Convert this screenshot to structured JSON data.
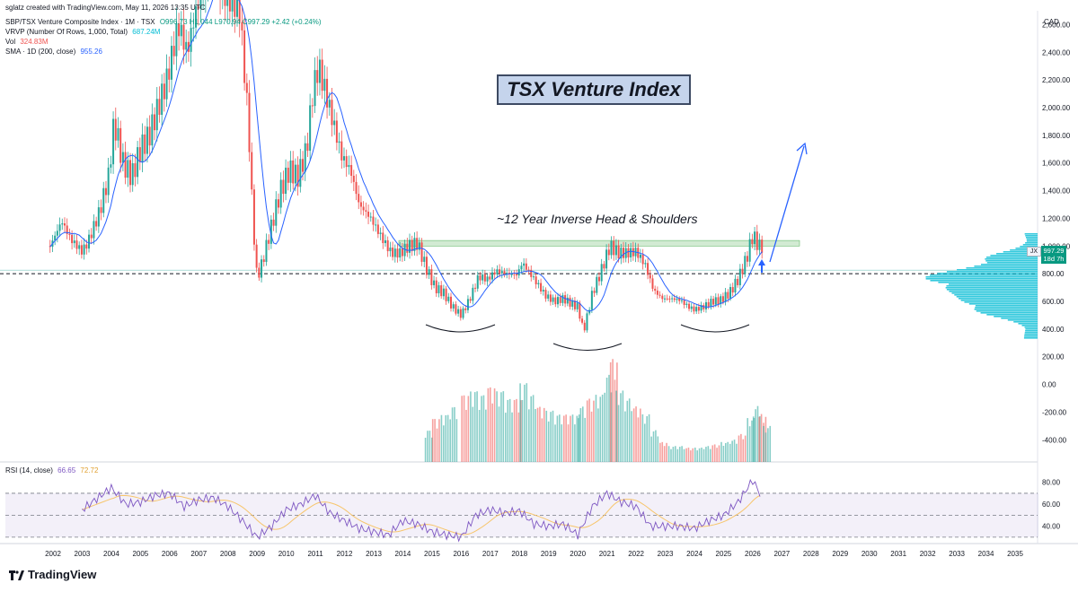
{
  "header": {
    "attribution": "sglatz created with TradingView.com, May 11, 2026 13:35 UTC",
    "symbol_line": "SBP/TSX Venture Composite Index · 1M · TSX",
    "ohlc": "O996.73 H1,044 L970.94 C997.29 +2.42 (+0.24%)",
    "vrvp_label": "VRVP (Number Of Rows, 1,000, Total)",
    "vrvp_value": "687.24M",
    "vol_label": "Vol",
    "vol_value": "324.83M",
    "sma_label": "SMA · 1D (200, close)",
    "sma_value": "955.26",
    "rsi_label": "RSI (14, close)",
    "rsi_value": "66.65",
    "rsi_ma_value": "72.72"
  },
  "annotations": {
    "title": "TSX Venture Index",
    "pattern": "~12 Year Inverse Head & Shoulders"
  },
  "price_tag": {
    "symbol": "JX",
    "price": "997.29",
    "countdown": "18d 7h"
  },
  "currency": "CAD",
  "brand": "TradingView",
  "colors": {
    "up": "#26a69a",
    "down": "#ef5350",
    "sma": "#2962ff",
    "rsi": "#7e57c2",
    "rsi_ma": "#f7c56b",
    "vrvp": "#00bcd4"
  },
  "chart_data": {
    "type": "candlestick",
    "x_ticks": [
      "2002",
      "2003",
      "2004",
      "2005",
      "2006",
      "2007",
      "2008",
      "2009",
      "2010",
      "2011",
      "2012",
      "2013",
      "2014",
      "2015",
      "2016",
      "2017",
      "2018",
      "2019",
      "2020",
      "2021",
      "2022",
      "2023",
      "2024",
      "2025",
      "2026",
      "2027",
      "2028",
      "2029",
      "2030",
      "2031",
      "2032",
      "2033",
      "2034",
      "2035"
    ],
    "price_ticks": [
      "-400.00",
      "-200.00",
      "0.00",
      "200.00",
      "400.00",
      "600.00",
      "800.00",
      "1,000.00",
      "1,200.00",
      "1,400.00",
      "1,600.00",
      "1,800.00",
      "2,000.00",
      "2,200.00",
      "2,400.00",
      "2,600.00"
    ],
    "rsi_ticks": [
      "40.00",
      "60.00",
      "80.00"
    ],
    "price_ylim": [
      -560,
      2700
    ],
    "rsi_ylim": [
      25,
      92
    ],
    "support_level": 800,
    "resistance_zone": [
      1000,
      1040
    ],
    "sma_value": 955.26,
    "close_series": [
      {
        "t": 2001.9,
        "v": 1000
      },
      {
        "t": 2002.3,
        "v": 1180
      },
      {
        "t": 2002.6,
        "v": 1050
      },
      {
        "t": 2003.0,
        "v": 960
      },
      {
        "t": 2003.2,
        "v": 1030
      },
      {
        "t": 2003.6,
        "v": 1250
      },
      {
        "t": 2003.9,
        "v": 1500
      },
      {
        "t": 2004.1,
        "v": 1900
      },
      {
        "t": 2004.4,
        "v": 1600
      },
      {
        "t": 2004.7,
        "v": 1500
      },
      {
        "t": 2005.0,
        "v": 1700
      },
      {
        "t": 2005.3,
        "v": 1800
      },
      {
        "t": 2005.6,
        "v": 2000
      },
      {
        "t": 2005.9,
        "v": 2200
      },
      {
        "t": 2006.3,
        "v": 2600
      },
      {
        "t": 2006.6,
        "v": 2400
      },
      {
        "t": 2006.9,
        "v": 2700
      },
      {
        "t": 2007.2,
        "v": 2850
      },
      {
        "t": 2007.5,
        "v": 2950
      },
      {
        "t": 2007.8,
        "v": 2800
      },
      {
        "t": 2008.1,
        "v": 2750
      },
      {
        "t": 2008.4,
        "v": 2700
      },
      {
        "t": 2008.7,
        "v": 1900
      },
      {
        "t": 2008.85,
        "v": 1200
      },
      {
        "t": 2009.0,
        "v": 760
      },
      {
        "t": 2009.2,
        "v": 900
      },
      {
        "t": 2009.5,
        "v": 1150
      },
      {
        "t": 2009.8,
        "v": 1400
      },
      {
        "t": 2010.1,
        "v": 1550
      },
      {
        "t": 2010.4,
        "v": 1500
      },
      {
        "t": 2010.7,
        "v": 1700
      },
      {
        "t": 2010.9,
        "v": 2100
      },
      {
        "t": 2011.1,
        "v": 2300
      },
      {
        "t": 2011.3,
        "v": 2150
      },
      {
        "t": 2011.6,
        "v": 1900
      },
      {
        "t": 2011.9,
        "v": 1650
      },
      {
        "t": 2012.2,
        "v": 1550
      },
      {
        "t": 2012.5,
        "v": 1300
      },
      {
        "t": 2012.9,
        "v": 1200
      },
      {
        "t": 2013.3,
        "v": 1050
      },
      {
        "t": 2013.6,
        "v": 950
      },
      {
        "t": 2013.9,
        "v": 950
      },
      {
        "t": 2014.2,
        "v": 1000
      },
      {
        "t": 2014.5,
        "v": 1020
      },
      {
        "t": 2014.8,
        "v": 840
      },
      {
        "t": 2015.1,
        "v": 700
      },
      {
        "t": 2015.4,
        "v": 660
      },
      {
        "t": 2015.7,
        "v": 560
      },
      {
        "t": 2016.0,
        "v": 500
      },
      {
        "t": 2016.3,
        "v": 620
      },
      {
        "t": 2016.6,
        "v": 780
      },
      {
        "t": 2016.9,
        "v": 760
      },
      {
        "t": 2017.2,
        "v": 820
      },
      {
        "t": 2017.6,
        "v": 800
      },
      {
        "t": 2017.9,
        "v": 790
      },
      {
        "t": 2018.1,
        "v": 880
      },
      {
        "t": 2018.5,
        "v": 760
      },
      {
        "t": 2018.9,
        "v": 640
      },
      {
        "t": 2019.2,
        "v": 600
      },
      {
        "t": 2019.5,
        "v": 620
      },
      {
        "t": 2019.8,
        "v": 580
      },
      {
        "t": 2020.0,
        "v": 560
      },
      {
        "t": 2020.2,
        "v": 380
      },
      {
        "t": 2020.5,
        "v": 660
      },
      {
        "t": 2020.8,
        "v": 820
      },
      {
        "t": 2021.1,
        "v": 1000
      },
      {
        "t": 2021.4,
        "v": 950
      },
      {
        "t": 2021.7,
        "v": 950
      },
      {
        "t": 2022.0,
        "v": 960
      },
      {
        "t": 2022.3,
        "v": 870
      },
      {
        "t": 2022.6,
        "v": 680
      },
      {
        "t": 2022.9,
        "v": 620
      },
      {
        "t": 2023.2,
        "v": 620
      },
      {
        "t": 2023.5,
        "v": 610
      },
      {
        "t": 2023.8,
        "v": 560
      },
      {
        "t": 2024.0,
        "v": 540
      },
      {
        "t": 2024.3,
        "v": 560
      },
      {
        "t": 2024.6,
        "v": 600
      },
      {
        "t": 2024.9,
        "v": 610
      },
      {
        "t": 2025.2,
        "v": 660
      },
      {
        "t": 2025.5,
        "v": 760
      },
      {
        "t": 2025.8,
        "v": 920
      },
      {
        "t": 2026.0,
        "v": 1080
      },
      {
        "t": 2026.2,
        "v": 1000
      },
      {
        "t": 2026.35,
        "v": 997
      }
    ],
    "volume_series": [
      {
        "t": 2014.75,
        "v": 40
      },
      {
        "t": 2015.0,
        "v": 55
      },
      {
        "t": 2015.3,
        "v": 60
      },
      {
        "t": 2015.6,
        "v": 70
      },
      {
        "t": 2016.0,
        "v": 85
      },
      {
        "t": 2016.3,
        "v": 90
      },
      {
        "t": 2016.6,
        "v": 85
      },
      {
        "t": 2016.9,
        "v": 95
      },
      {
        "t": 2017.2,
        "v": 90
      },
      {
        "t": 2017.5,
        "v": 80
      },
      {
        "t": 2017.8,
        "v": 80
      },
      {
        "t": 2018.0,
        "v": 100
      },
      {
        "t": 2018.3,
        "v": 85
      },
      {
        "t": 2018.6,
        "v": 70
      },
      {
        "t": 2018.9,
        "v": 65
      },
      {
        "t": 2019.2,
        "v": 60
      },
      {
        "t": 2019.5,
        "v": 60
      },
      {
        "t": 2019.8,
        "v": 60
      },
      {
        "t": 2020.0,
        "v": 70
      },
      {
        "t": 2020.3,
        "v": 80
      },
      {
        "t": 2020.6,
        "v": 85
      },
      {
        "t": 2020.9,
        "v": 110
      },
      {
        "t": 2021.1,
        "v": 130
      },
      {
        "t": 2021.3,
        "v": 90
      },
      {
        "t": 2021.6,
        "v": 80
      },
      {
        "t": 2021.9,
        "v": 70
      },
      {
        "t": 2022.2,
        "v": 60
      },
      {
        "t": 2022.5,
        "v": 40
      },
      {
        "t": 2022.8,
        "v": 25
      },
      {
        "t": 2023.1,
        "v": 20
      },
      {
        "t": 2023.4,
        "v": 20
      },
      {
        "t": 2023.7,
        "v": 18
      },
      {
        "t": 2024.0,
        "v": 18
      },
      {
        "t": 2024.3,
        "v": 20
      },
      {
        "t": 2024.6,
        "v": 22
      },
      {
        "t": 2024.9,
        "v": 25
      },
      {
        "t": 2025.2,
        "v": 28
      },
      {
        "t": 2025.5,
        "v": 35
      },
      {
        "t": 2025.8,
        "v": 55
      },
      {
        "t": 2026.0,
        "v": 70
      },
      {
        "t": 2026.2,
        "v": 60
      },
      {
        "t": 2026.35,
        "v": 45
      }
    ],
    "rsi_series": [
      {
        "t": 2003.0,
        "v": 55
      },
      {
        "t": 2003.5,
        "v": 65
      },
      {
        "t": 2004.0,
        "v": 75
      },
      {
        "t": 2004.5,
        "v": 60
      },
      {
        "t": 2005.0,
        "v": 62
      },
      {
        "t": 2005.5,
        "v": 68
      },
      {
        "t": 2006.0,
        "v": 70
      },
      {
        "t": 2006.5,
        "v": 58
      },
      {
        "t": 2007.0,
        "v": 64
      },
      {
        "t": 2007.5,
        "v": 66
      },
      {
        "t": 2008.0,
        "v": 58
      },
      {
        "t": 2008.5,
        "v": 45
      },
      {
        "t": 2009.0,
        "v": 30
      },
      {
        "t": 2009.5,
        "v": 40
      },
      {
        "t": 2010.0,
        "v": 55
      },
      {
        "t": 2010.5,
        "v": 60
      },
      {
        "t": 2011.0,
        "v": 68
      },
      {
        "t": 2011.5,
        "v": 52
      },
      {
        "t": 2012.0,
        "v": 45
      },
      {
        "t": 2012.5,
        "v": 38
      },
      {
        "t": 2013.0,
        "v": 35
      },
      {
        "t": 2013.5,
        "v": 32
      },
      {
        "t": 2014.0,
        "v": 45
      },
      {
        "t": 2014.5,
        "v": 42
      },
      {
        "t": 2015.0,
        "v": 35
      },
      {
        "t": 2015.5,
        "v": 32
      },
      {
        "t": 2016.0,
        "v": 30
      },
      {
        "t": 2016.5,
        "v": 50
      },
      {
        "t": 2017.0,
        "v": 55
      },
      {
        "t": 2017.5,
        "v": 52
      },
      {
        "t": 2018.0,
        "v": 54
      },
      {
        "t": 2018.5,
        "v": 42
      },
      {
        "t": 2019.0,
        "v": 40
      },
      {
        "t": 2019.5,
        "v": 42
      },
      {
        "t": 2020.0,
        "v": 32
      },
      {
        "t": 2020.5,
        "v": 58
      },
      {
        "t": 2021.0,
        "v": 70
      },
      {
        "t": 2021.5,
        "v": 62
      },
      {
        "t": 2022.0,
        "v": 58
      },
      {
        "t": 2022.5,
        "v": 40
      },
      {
        "t": 2023.0,
        "v": 40
      },
      {
        "t": 2023.5,
        "v": 40
      },
      {
        "t": 2024.0,
        "v": 38
      },
      {
        "t": 2024.5,
        "v": 45
      },
      {
        "t": 2025.0,
        "v": 50
      },
      {
        "t": 2025.5,
        "v": 62
      },
      {
        "t": 2026.0,
        "v": 82
      },
      {
        "t": 2026.3,
        "v": 67
      }
    ]
  }
}
